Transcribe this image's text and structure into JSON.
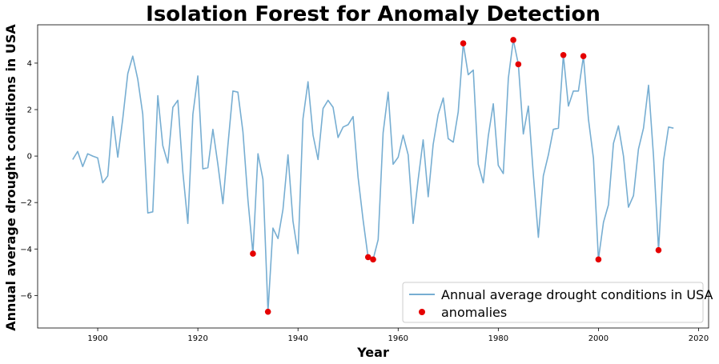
{
  "chart_data": {
    "type": "line",
    "title": "Isolation Forest for Anomaly Detection",
    "xlabel": "Year",
    "ylabel": "Annual average drought conditions in USA",
    "xlim": [
      1888,
      2022
    ],
    "ylim": [
      -7.4,
      5.65
    ],
    "xticks": [
      1900,
      1920,
      1940,
      1960,
      1980,
      2000,
      2020
    ],
    "yticks": [
      -6,
      -4,
      -2,
      0,
      2,
      4
    ],
    "grid": false,
    "legend_position": "bottom-right",
    "series": [
      {
        "name": "Annual average drought conditions in USA",
        "kind": "line",
        "color": "#77aed2",
        "x": [
          1895,
          1896,
          1897,
          1898,
          1899,
          1900,
          1901,
          1902,
          1903,
          1904,
          1905,
          1906,
          1907,
          1908,
          1909,
          1910,
          1911,
          1912,
          1913,
          1914,
          1915,
          1916,
          1917,
          1918,
          1919,
          1920,
          1921,
          1922,
          1923,
          1924,
          1925,
          1926,
          1927,
          1928,
          1929,
          1930,
          1931,
          1932,
          1933,
          1934,
          1935,
          1936,
          1937,
          1938,
          1939,
          1940,
          1941,
          1942,
          1943,
          1944,
          1945,
          1946,
          1947,
          1948,
          1949,
          1950,
          1951,
          1952,
          1953,
          1954,
          1955,
          1956,
          1957,
          1958,
          1959,
          1960,
          1961,
          1962,
          1963,
          1964,
          1965,
          1966,
          1967,
          1968,
          1969,
          1970,
          1971,
          1972,
          1973,
          1974,
          1975,
          1976,
          1977,
          1978,
          1979,
          1980,
          1981,
          1982,
          1983,
          1984,
          1985,
          1986,
          1987,
          1988,
          1989,
          1990,
          1991,
          1992,
          1993,
          1994,
          1995,
          1996,
          1997,
          1998,
          1999,
          2000,
          2001,
          2002,
          2003,
          2004,
          2005,
          2006,
          2007,
          2008,
          2009,
          2010,
          2011,
          2012,
          2013,
          2014,
          2015
        ],
        "y": [
          -0.15,
          0.2,
          -0.45,
          0.1,
          0.0,
          -0.08,
          -1.15,
          -0.85,
          1.7,
          -0.05,
          1.6,
          3.55,
          4.3,
          3.3,
          1.8,
          -2.45,
          -2.4,
          2.6,
          0.45,
          -0.3,
          2.1,
          2.4,
          -0.7,
          -2.9,
          1.8,
          3.45,
          -0.55,
          -0.5,
          1.15,
          -0.35,
          -2.05,
          0.45,
          2.8,
          2.75,
          1.05,
          -1.9,
          -4.2,
          0.1,
          -1.0,
          -6.7,
          -3.1,
          -3.55,
          -2.3,
          0.05,
          -2.8,
          -4.2,
          1.6,
          3.2,
          0.9,
          -0.15,
          2.05,
          2.4,
          2.1,
          0.8,
          1.25,
          1.35,
          1.7,
          -0.9,
          -2.75,
          -4.35,
          -4.45,
          -3.6,
          1.0,
          2.75,
          -0.35,
          -0.05,
          0.9,
          0.05,
          -2.9,
          -1.0,
          0.7,
          -1.75,
          0.5,
          1.8,
          2.5,
          0.75,
          0.6,
          1.9,
          4.85,
          3.5,
          3.7,
          -0.35,
          -1.15,
          0.85,
          2.25,
          -0.4,
          -0.75,
          3.35,
          5.0,
          3.95,
          0.95,
          2.15,
          -0.8,
          -3.5,
          -0.85,
          0.05,
          1.15,
          1.2,
          4.35,
          2.15,
          2.8,
          2.8,
          4.3,
          1.6,
          -0.1,
          -4.45,
          -2.85,
          -2.1,
          0.55,
          1.3,
          0.0,
          -2.2,
          -1.7,
          0.3,
          1.2,
          3.05,
          0.0,
          -4.05,
          -0.2,
          1.25,
          1.2
        ]
      },
      {
        "name": "anomalies",
        "kind": "scatter",
        "color": "#e50000",
        "x": [
          1931,
          1934,
          1954,
          1955,
          1973,
          1983,
          1984,
          1993,
          1997,
          2000,
          2012
        ],
        "y": [
          -4.2,
          -6.7,
          -4.35,
          -4.45,
          4.85,
          5.0,
          3.95,
          4.35,
          4.3,
          -4.45,
          -4.05
        ]
      }
    ]
  }
}
